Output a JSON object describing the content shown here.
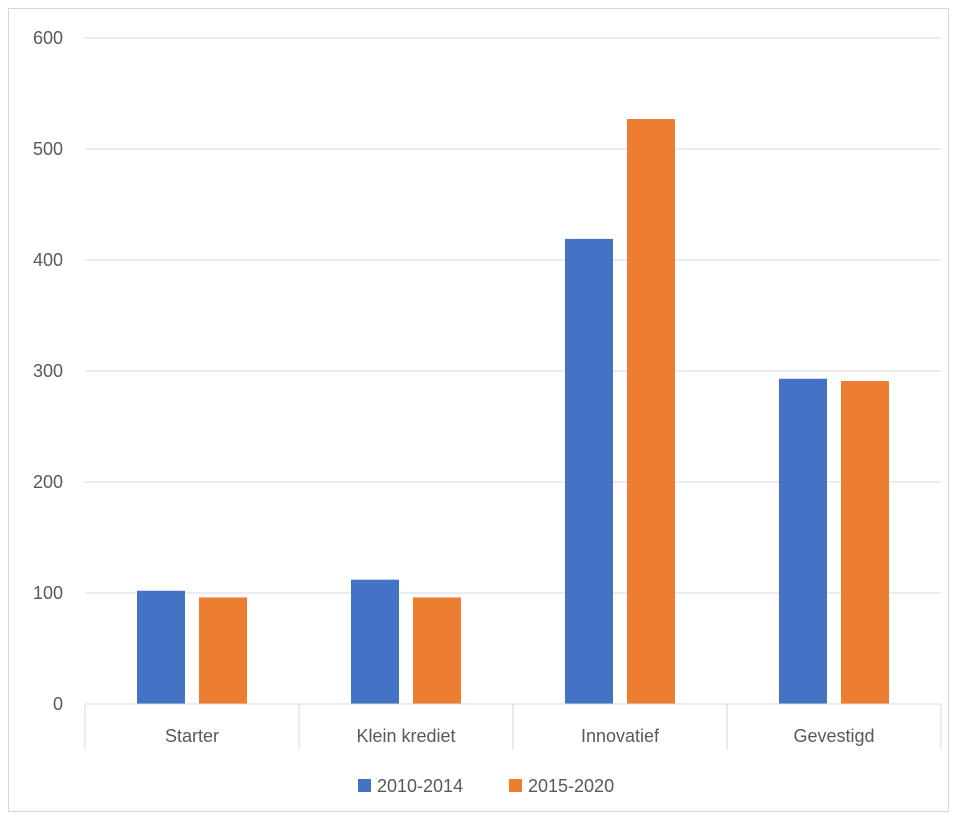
{
  "chart_data": {
    "type": "bar",
    "categories": [
      "Starter",
      "Klein krediet",
      "Innovatief",
      "Gevestigd"
    ],
    "series": [
      {
        "name": "2010-2014",
        "values": [
          102,
          112,
          419,
          293
        ],
        "color": "#4472C4"
      },
      {
        "name": "2015-2020",
        "values": [
          96,
          96,
          527,
          291
        ],
        "color": "#ED7D31"
      }
    ],
    "ylim": [
      0,
      600
    ],
    "yticks": [
      "0",
      "100",
      "200",
      "300",
      "400",
      "500",
      "600"
    ],
    "grid": true,
    "legend_position": "bottom",
    "title": "",
    "xlabel": "",
    "ylabel": ""
  }
}
